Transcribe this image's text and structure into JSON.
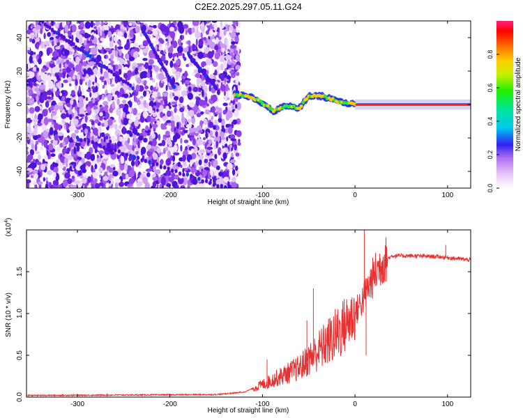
{
  "title": "C2E2.2025.297.05.11.G24",
  "chart_data": [
    {
      "type": "heatmap",
      "xlabel": "Height of straight line (km)",
      "ylabel": "Frequency (Hz)",
      "xlim": [
        -355,
        125
      ],
      "ylim": [
        -50,
        50
      ],
      "xticks": [
        -300,
        -200,
        -100,
        0,
        100
      ],
      "yticks": [
        -40,
        -20,
        0,
        20,
        40
      ],
      "colorbar": {
        "label": "Normalized spectral amplitude",
        "range": [
          0,
          1
        ],
        "ticks": [
          0.0,
          0.2,
          0.4,
          0.6,
          0.8
        ]
      },
      "noise_region_x": [
        -355,
        -125
      ],
      "signal_track": [
        {
          "x": -130,
          "y": 6
        },
        {
          "x": -115,
          "y": 5
        },
        {
          "x": -100,
          "y": 1
        },
        {
          "x": -88,
          "y": -4
        },
        {
          "x": -75,
          "y": -1
        },
        {
          "x": -60,
          "y": -2
        },
        {
          "x": -50,
          "y": 5
        },
        {
          "x": -35,
          "y": 5
        },
        {
          "x": -20,
          "y": 2
        },
        {
          "x": 0,
          "y": 0
        },
        {
          "x": 125,
          "y": 0
        }
      ]
    },
    {
      "type": "line",
      "xlabel": "Height of straight line (km)",
      "ylabel": "SNR (10 * v/v)",
      "multiplier": "(x10",
      "multiplier_exp": "4",
      "xlim": [
        -355,
        125
      ],
      "ylim": [
        0,
        2.0
      ],
      "xticks": [
        -300,
        -200,
        -100,
        0,
        100
      ],
      "yticks": [
        0.0,
        0.5,
        1.0,
        1.5
      ],
      "color": "#e83030",
      "envelope": [
        {
          "x": -355,
          "y": 0.02
        },
        {
          "x": -150,
          "y": 0.03
        },
        {
          "x": -120,
          "y": 0.06
        },
        {
          "x": -100,
          "y": 0.15
        },
        {
          "x": -80,
          "y": 0.25
        },
        {
          "x": -60,
          "y": 0.35
        },
        {
          "x": -40,
          "y": 0.55
        },
        {
          "x": -20,
          "y": 0.75
        },
        {
          "x": 0,
          "y": 1.0
        },
        {
          "x": 10,
          "y": 1.2
        },
        {
          "x": 20,
          "y": 1.45
        },
        {
          "x": 30,
          "y": 1.62
        },
        {
          "x": 40,
          "y": 1.69
        },
        {
          "x": 60,
          "y": 1.69
        },
        {
          "x": 90,
          "y": 1.68
        },
        {
          "x": 125,
          "y": 1.64
        }
      ],
      "spikes": [
        {
          "x": -95,
          "y": 0.45
        },
        {
          "x": -52,
          "y": 0.92
        },
        {
          "x": -45,
          "y": 1.3
        },
        {
          "x": 10,
          "y": 2.0
        },
        {
          "x": 12,
          "y": 0.5
        },
        {
          "x": 98,
          "y": 1.82
        }
      ]
    }
  ]
}
